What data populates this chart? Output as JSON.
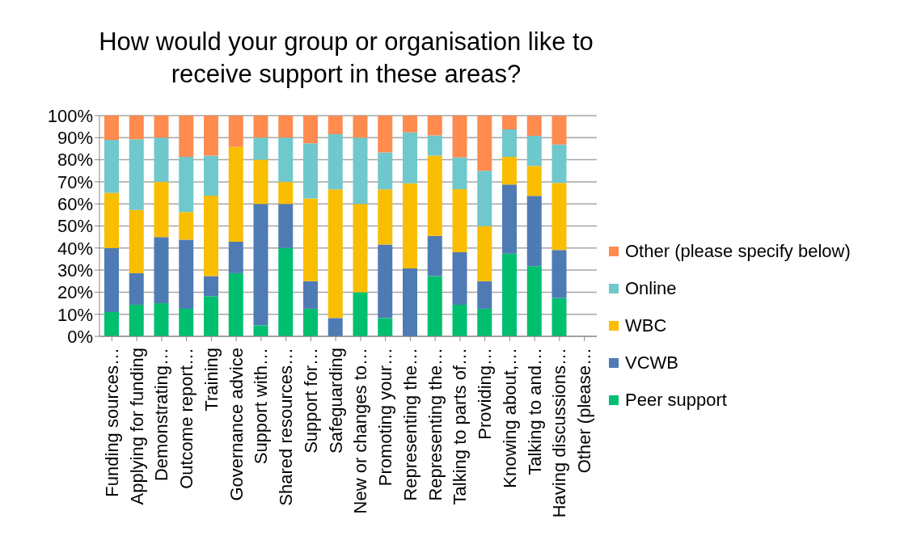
{
  "chart_data": {
    "type": "bar",
    "stacked": true,
    "title": "How would your group or organisation like to receive support in these areas?",
    "categories": [
      "Funding sources…",
      "Applying for funding",
      "Demonstrating…",
      "Outcome report…",
      "Training",
      "Governance advice",
      "Support with…",
      "Shared resources…",
      "Support for…",
      "Safeguarding",
      "New or changes to…",
      "Promoting your…",
      "Representing the…",
      "Representing the…",
      "Talking to parts of…",
      "Providing…",
      "Knowing about,…",
      "Talking to and…",
      "Having discussions…",
      "Other (please…"
    ],
    "series": [
      {
        "name": "Peer support",
        "color": "#00bf6f",
        "values": [
          11,
          14.3,
          15,
          12.5,
          18.2,
          28.6,
          5,
          40,
          12.5,
          0,
          20,
          8.3,
          0,
          27.3,
          14.3,
          12.5,
          37.5,
          31.8,
          17.4,
          null
        ]
      },
      {
        "name": "VCWB",
        "color": "#4f7bb5",
        "values": [
          29,
          14.3,
          30,
          31.3,
          9.1,
          14.3,
          55,
          20,
          12.5,
          8.3,
          0,
          33.3,
          30.8,
          18.2,
          23.8,
          12.5,
          31.3,
          31.8,
          21.7,
          null
        ]
      },
      {
        "name": "WBC",
        "color": "#f9be00",
        "values": [
          25,
          28.6,
          25,
          12.5,
          36.4,
          42.9,
          20,
          10,
          37.5,
          58.3,
          40,
          25,
          38.5,
          36.4,
          28.6,
          25,
          12.5,
          13.6,
          30.4,
          null
        ]
      },
      {
        "name": "Online",
        "color": "#6ec8cc",
        "values": [
          24,
          32.1,
          20,
          25,
          18.2,
          0,
          10,
          20,
          25,
          25,
          30,
          16.7,
          23.1,
          9.1,
          14.3,
          25,
          12.5,
          13.6,
          17.4,
          null
        ]
      },
      {
        "name": "Other (please specify below)",
        "color": "#ff8b4f",
        "values": [
          11,
          10.7,
          10,
          18.8,
          18.2,
          14.3,
          10,
          10,
          12.5,
          8.3,
          10,
          16.7,
          7.7,
          9.1,
          19,
          25,
          6.3,
          9.1,
          13,
          null
        ]
      }
    ],
    "ylim": [
      0,
      100
    ],
    "yticks": [
      {
        "value": 0,
        "label": "0%"
      },
      {
        "value": 10,
        "label": "10%"
      },
      {
        "value": 20,
        "label": "20%"
      },
      {
        "value": 30,
        "label": "30%"
      },
      {
        "value": 40,
        "label": "40%"
      },
      {
        "value": 50,
        "label": "50%"
      },
      {
        "value": 60,
        "label": "60%"
      },
      {
        "value": 70,
        "label": "70%"
      },
      {
        "value": 80,
        "label": "80%"
      },
      {
        "value": 90,
        "label": "90%"
      },
      {
        "value": 100,
        "label": "100%"
      }
    ],
    "grid": "y",
    "legend": "right"
  }
}
